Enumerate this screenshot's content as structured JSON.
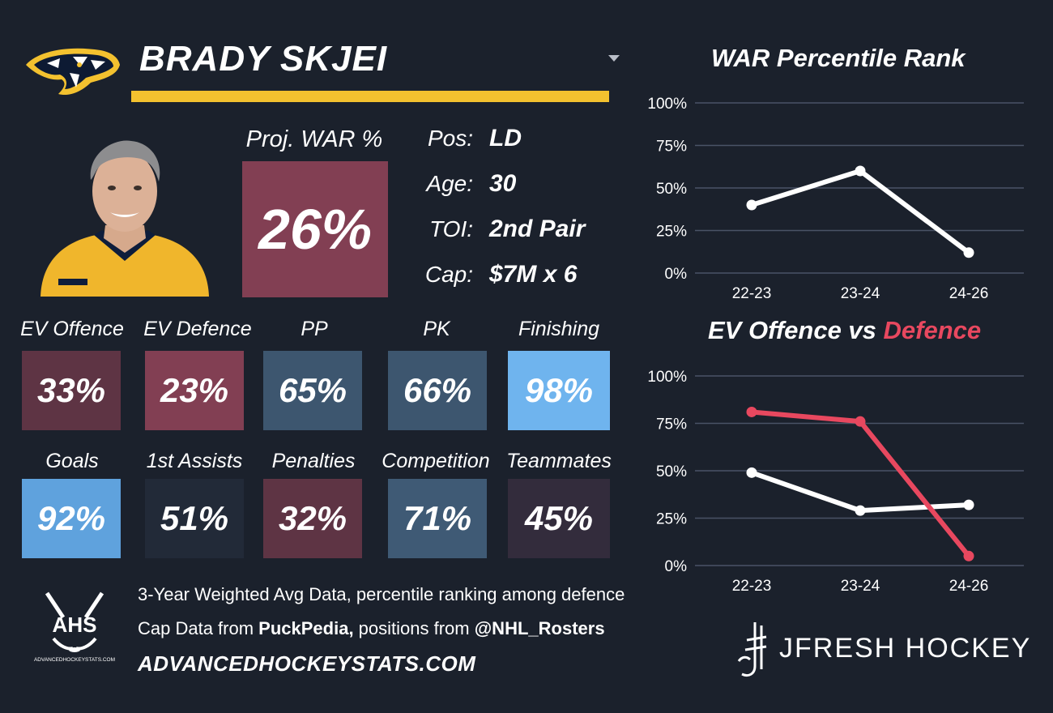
{
  "player": {
    "name": "BRADY SKJEI",
    "proj_war_label": "Proj. WAR %",
    "proj_war_value": "26%"
  },
  "info": [
    {
      "label": "Pos:",
      "value": "LD"
    },
    {
      "label": "Age:",
      "value": "30"
    },
    {
      "label": "TOI:",
      "value": "2nd Pair"
    },
    {
      "label": "Cap:",
      "value": "$7M x 6"
    }
  ],
  "stats": [
    {
      "label": "EV Offence",
      "value": "33%",
      "color": "#5e3444"
    },
    {
      "label": "EV Defence",
      "value": "23%",
      "color": "#823f53"
    },
    {
      "label": "PP",
      "value": "65%",
      "color": "#3d566f"
    },
    {
      "label": "PK",
      "value": "66%",
      "color": "#3d566f"
    },
    {
      "label": "Finishing",
      "value": "98%",
      "color": "#6fb4ee"
    },
    {
      "label": "Goals",
      "value": "92%",
      "color": "#5fa2dd"
    },
    {
      "label": "1st Assists",
      "value": "51%",
      "color": "#222a38"
    },
    {
      "label": "Penalties",
      "value": "32%",
      "color": "#5e3444"
    },
    {
      "label": "Competition",
      "value": "71%",
      "color": "#3f5a75"
    },
    {
      "label": "Teammates",
      "value": "45%",
      "color": "#332c3c"
    }
  ],
  "icons": {
    "team_logo": "predators-logo-icon",
    "dropdown": "chevron-down-icon",
    "player_photo": "player-photo",
    "ahs_logo": "ahs-logo-icon",
    "brand_logo": "jfresh-logo-icon"
  },
  "logo_text": {
    "ahs": "AHS",
    "ahs_sub": "ADVANCEDHOCKEYSTATS.COM"
  },
  "footer": {
    "line1": "3-Year Weighted Avg Data, percentile ranking among defence",
    "line2_pre": "Cap Data from ",
    "line2_b1": "PuckPedia,",
    "line2_mid": " positions from ",
    "line2_b2": "@NHL_Rosters",
    "site": "ADVANCEDHOCKEYSTATS.COM"
  },
  "brand": "JFRESH HOCKEY",
  "colors": {
    "accent_gold": "#f3c12f",
    "background": "#1b212c",
    "defence_red": "#e8485f",
    "offence_white": "#ffffff"
  },
  "chart_data": [
    {
      "type": "line",
      "title": "WAR Percentile Rank",
      "categories": [
        "22-23",
        "23-24",
        "24-26"
      ],
      "ylim": [
        0,
        100
      ],
      "yticks": [
        "100%",
        "75%",
        "50%",
        "25%",
        "0%"
      ],
      "grid": true,
      "series": [
        {
          "values": [
            40,
            60,
            12
          ],
          "color": "#ffffff"
        }
      ]
    },
    {
      "type": "line",
      "title_prefix": "EV Offence vs ",
      "title_suffix": "Defence",
      "categories": [
        "22-23",
        "23-24",
        "24-26"
      ],
      "ylim": [
        0,
        100
      ],
      "yticks": [
        "100%",
        "75%",
        "50%",
        "25%",
        "0%"
      ],
      "grid": true,
      "series": [
        {
          "values": [
            49,
            29,
            32
          ],
          "color": "#ffffff"
        },
        {
          "values": [
            81,
            76,
            5
          ],
          "color": "#e8485f"
        }
      ]
    }
  ]
}
